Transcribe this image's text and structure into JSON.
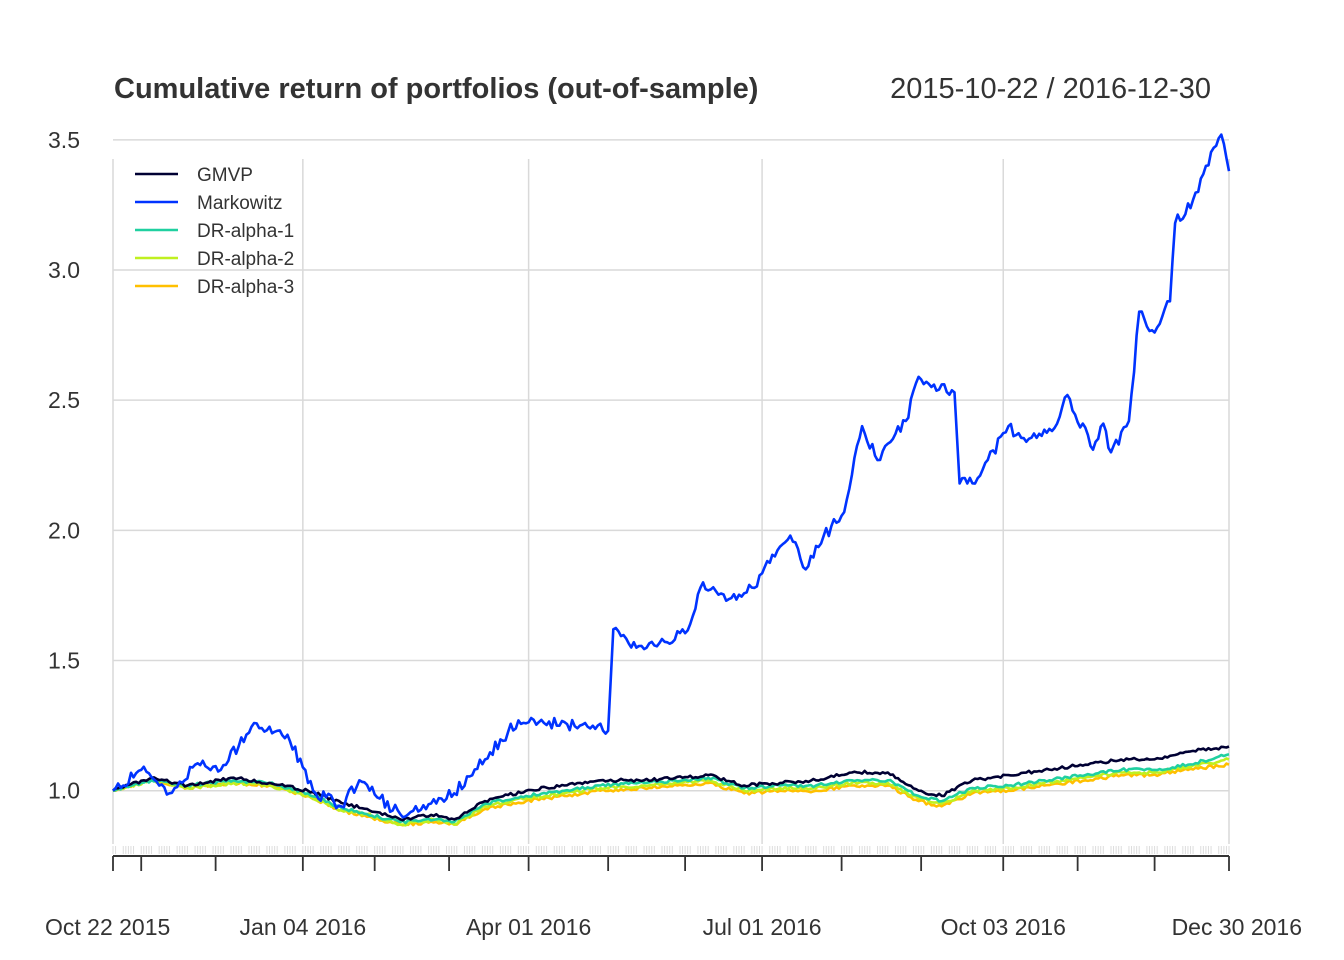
{
  "chart_data": {
    "type": "line",
    "title": "Cumulative return of portfolios (out-of-sample)",
    "date_range": "2015-10-22 / 2016-12-30",
    "xlabel": "",
    "ylabel": "",
    "ylim": [
      0.78,
      3.58
    ],
    "xlim": [
      "2015-10-22",
      "2016-12-30"
    ],
    "grid": true,
    "legend_position": "top-left",
    "y_ticks": [
      {
        "value": 1.0,
        "label": "1.0"
      },
      {
        "value": 1.5,
        "label": "1.5"
      },
      {
        "value": 2.0,
        "label": "2.0"
      },
      {
        "value": 2.5,
        "label": "2.5"
      },
      {
        "value": 3.0,
        "label": "3.0"
      },
      {
        "value": 3.5,
        "label": "3.5"
      }
    ],
    "x_ticks": [
      {
        "date": "2015-10-22",
        "label": "Oct 22 2015"
      },
      {
        "date": "2016-01-04",
        "label": "Jan 04 2016"
      },
      {
        "date": "2016-04-01",
        "label": "Apr 01 2016"
      },
      {
        "date": "2016-07-01",
        "label": "Jul 01 2016"
      },
      {
        "date": "2016-10-03",
        "label": "Oct 03 2016"
      },
      {
        "date": "2016-12-30",
        "label": "Dec 30 2016"
      }
    ],
    "x_minor_ticks": [
      "2015-11-02",
      "2015-12-01",
      "2016-02-01",
      "2016-03-01",
      "2016-05-02",
      "2016-06-01",
      "2016-08-01",
      "2016-09-01",
      "2016-11-01",
      "2016-12-01"
    ],
    "series": [
      {
        "name": "DR-alpha-3",
        "color": "#FFC000",
        "width": 2.6,
        "points": [
          [
            "2015-10-22",
            1.0
          ],
          [
            "2015-11-06",
            1.04
          ],
          [
            "2015-11-20",
            1.01
          ],
          [
            "2015-12-08",
            1.03
          ],
          [
            "2015-12-22",
            1.02
          ],
          [
            "2016-01-06",
            0.98
          ],
          [
            "2016-01-20",
            0.92
          ],
          [
            "2016-01-29",
            0.9
          ],
          [
            "2016-02-11",
            0.87
          ],
          [
            "2016-02-25",
            0.88
          ],
          [
            "2016-03-03",
            0.87
          ],
          [
            "2016-03-15",
            0.93
          ],
          [
            "2016-03-31",
            0.96
          ],
          [
            "2016-04-15",
            0.98
          ],
          [
            "2016-04-29",
            1.0
          ],
          [
            "2016-05-16",
            1.01
          ],
          [
            "2016-05-31",
            1.02
          ],
          [
            "2016-06-10",
            1.03
          ],
          [
            "2016-06-24",
            0.99
          ],
          [
            "2016-07-08",
            1.0
          ],
          [
            "2016-07-22",
            1.0
          ],
          [
            "2016-08-05",
            1.02
          ],
          [
            "2016-08-19",
            1.02
          ],
          [
            "2016-08-31",
            0.96
          ],
          [
            "2016-09-09",
            0.94
          ],
          [
            "2016-09-21",
            0.99
          ],
          [
            "2016-10-05",
            1.0
          ],
          [
            "2016-10-19",
            1.02
          ],
          [
            "2016-11-04",
            1.04
          ],
          [
            "2016-11-18",
            1.06
          ],
          [
            "2016-11-30",
            1.06
          ],
          [
            "2016-12-14",
            1.08
          ],
          [
            "2016-12-30",
            1.1
          ]
        ]
      },
      {
        "name": "DR-alpha-2",
        "color": "#C0F020",
        "width": 2.6,
        "points": [
          [
            "2015-10-22",
            1.0
          ],
          [
            "2015-11-06",
            1.04
          ],
          [
            "2015-11-20",
            1.01
          ],
          [
            "2015-12-08",
            1.03
          ],
          [
            "2015-12-22",
            1.02
          ],
          [
            "2016-01-06",
            0.98
          ],
          [
            "2016-01-20",
            0.92
          ],
          [
            "2016-01-29",
            0.91
          ],
          [
            "2016-02-11",
            0.87
          ],
          [
            "2016-02-25",
            0.89
          ],
          [
            "2016-03-03",
            0.87
          ],
          [
            "2016-03-15",
            0.94
          ],
          [
            "2016-03-31",
            0.97
          ],
          [
            "2016-04-15",
            0.99
          ],
          [
            "2016-04-29",
            1.01
          ],
          [
            "2016-05-16",
            1.02
          ],
          [
            "2016-05-31",
            1.03
          ],
          [
            "2016-06-10",
            1.04
          ],
          [
            "2016-06-24",
            1.0
          ],
          [
            "2016-07-08",
            1.01
          ],
          [
            "2016-07-22",
            1.01
          ],
          [
            "2016-08-05",
            1.03
          ],
          [
            "2016-08-19",
            1.03
          ],
          [
            "2016-08-31",
            0.97
          ],
          [
            "2016-09-09",
            0.95
          ],
          [
            "2016-09-21",
            1.0
          ],
          [
            "2016-10-05",
            1.01
          ],
          [
            "2016-10-19",
            1.03
          ],
          [
            "2016-11-04",
            1.05
          ],
          [
            "2016-11-18",
            1.07
          ],
          [
            "2016-11-30",
            1.07
          ],
          [
            "2016-12-14",
            1.09
          ],
          [
            "2016-12-30",
            1.12
          ]
        ]
      },
      {
        "name": "DR-alpha-1",
        "color": "#20D0A0",
        "width": 2.6,
        "points": [
          [
            "2015-10-22",
            1.0
          ],
          [
            "2015-11-06",
            1.04
          ],
          [
            "2015-11-20",
            1.02
          ],
          [
            "2015-12-08",
            1.04
          ],
          [
            "2015-12-22",
            1.03
          ],
          [
            "2016-01-06",
            0.99
          ],
          [
            "2016-01-20",
            0.93
          ],
          [
            "2016-01-29",
            0.91
          ],
          [
            "2016-02-11",
            0.88
          ],
          [
            "2016-02-25",
            0.89
          ],
          [
            "2016-03-03",
            0.88
          ],
          [
            "2016-03-15",
            0.95
          ],
          [
            "2016-03-31",
            0.98
          ],
          [
            "2016-04-15",
            1.0
          ],
          [
            "2016-04-29",
            1.02
          ],
          [
            "2016-05-16",
            1.03
          ],
          [
            "2016-05-31",
            1.04
          ],
          [
            "2016-06-10",
            1.05
          ],
          [
            "2016-06-24",
            1.01
          ],
          [
            "2016-07-08",
            1.02
          ],
          [
            "2016-07-22",
            1.02
          ],
          [
            "2016-08-05",
            1.04
          ],
          [
            "2016-08-19",
            1.04
          ],
          [
            "2016-08-31",
            0.98
          ],
          [
            "2016-09-09",
            0.96
          ],
          [
            "2016-09-21",
            1.01
          ],
          [
            "2016-10-05",
            1.02
          ],
          [
            "2016-10-19",
            1.04
          ],
          [
            "2016-11-04",
            1.06
          ],
          [
            "2016-11-18",
            1.08
          ],
          [
            "2016-11-30",
            1.08
          ],
          [
            "2016-12-14",
            1.1
          ],
          [
            "2016-12-30",
            1.14
          ]
        ]
      },
      {
        "name": "GMVP",
        "color": "#000033",
        "width": 2.6,
        "points": [
          [
            "2015-10-22",
            1.0
          ],
          [
            "2015-11-06",
            1.05
          ],
          [
            "2015-11-20",
            1.02
          ],
          [
            "2015-12-08",
            1.05
          ],
          [
            "2015-12-22",
            1.03
          ],
          [
            "2016-01-06",
            1.0
          ],
          [
            "2016-01-20",
            0.95
          ],
          [
            "2016-01-29",
            0.93
          ],
          [
            "2016-02-11",
            0.89
          ],
          [
            "2016-02-25",
            0.91
          ],
          [
            "2016-03-03",
            0.89
          ],
          [
            "2016-03-15",
            0.96
          ],
          [
            "2016-03-31",
            1.0
          ],
          [
            "2016-04-15",
            1.02
          ],
          [
            "2016-04-29",
            1.04
          ],
          [
            "2016-05-16",
            1.04
          ],
          [
            "2016-05-31",
            1.05
          ],
          [
            "2016-06-10",
            1.06
          ],
          [
            "2016-06-24",
            1.02
          ],
          [
            "2016-07-08",
            1.03
          ],
          [
            "2016-07-22",
            1.04
          ],
          [
            "2016-08-05",
            1.07
          ],
          [
            "2016-08-19",
            1.07
          ],
          [
            "2016-08-31",
            1.0
          ],
          [
            "2016-09-09",
            0.98
          ],
          [
            "2016-09-21",
            1.04
          ],
          [
            "2016-10-05",
            1.06
          ],
          [
            "2016-10-19",
            1.08
          ],
          [
            "2016-11-04",
            1.1
          ],
          [
            "2016-11-18",
            1.12
          ],
          [
            "2016-11-30",
            1.12
          ],
          [
            "2016-12-14",
            1.15
          ],
          [
            "2016-12-30",
            1.17
          ]
        ]
      },
      {
        "name": "Markowitz",
        "color": "#0033FF",
        "width": 2.6,
        "points": [
          [
            "2015-10-22",
            1.0
          ],
          [
            "2015-11-02",
            1.08
          ],
          [
            "2015-11-13",
            0.99
          ],
          [
            "2015-11-23",
            1.1
          ],
          [
            "2015-12-03",
            1.08
          ],
          [
            "2015-12-16",
            1.26
          ],
          [
            "2015-12-30",
            1.19
          ],
          [
            "2016-01-08",
            1.0
          ],
          [
            "2016-01-19",
            0.94
          ],
          [
            "2016-01-26",
            1.04
          ],
          [
            "2016-02-03",
            0.97
          ],
          [
            "2016-02-11",
            0.91
          ],
          [
            "2016-02-18",
            0.92
          ],
          [
            "2016-03-03",
            0.99
          ],
          [
            "2016-03-15",
            1.12
          ],
          [
            "2016-03-28",
            1.27
          ],
          [
            "2016-04-07",
            1.26
          ],
          [
            "2016-04-21",
            1.25
          ],
          [
            "2016-05-02",
            1.23
          ],
          [
            "2016-05-04",
            1.62
          ],
          [
            "2016-05-11",
            1.55
          ],
          [
            "2016-05-25",
            1.57
          ],
          [
            "2016-06-03",
            1.64
          ],
          [
            "2016-06-08",
            1.8
          ],
          [
            "2016-06-17",
            1.73
          ],
          [
            "2016-06-27",
            1.78
          ],
          [
            "2016-07-06",
            1.9
          ],
          [
            "2016-07-12",
            1.98
          ],
          [
            "2016-07-18",
            1.85
          ],
          [
            "2016-07-22",
            1.94
          ],
          [
            "2016-08-02",
            2.07
          ],
          [
            "2016-08-09",
            2.4
          ],
          [
            "2016-08-15",
            2.27
          ],
          [
            "2016-08-26",
            2.42
          ],
          [
            "2016-08-31",
            2.59
          ],
          [
            "2016-09-06",
            2.56
          ],
          [
            "2016-09-14",
            2.53
          ],
          [
            "2016-09-16",
            2.18
          ],
          [
            "2016-09-23",
            2.2
          ],
          [
            "2016-10-05",
            2.4
          ],
          [
            "2016-10-12",
            2.34
          ],
          [
            "2016-10-24",
            2.41
          ],
          [
            "2016-10-28",
            2.52
          ],
          [
            "2016-11-07",
            2.31
          ],
          [
            "2016-11-11",
            2.41
          ],
          [
            "2016-11-14",
            2.3
          ],
          [
            "2016-11-21",
            2.42
          ],
          [
            "2016-11-25",
            2.84
          ],
          [
            "2016-12-01",
            2.76
          ],
          [
            "2016-12-07",
            2.88
          ],
          [
            "2016-12-09",
            3.18
          ],
          [
            "2016-12-16",
            3.27
          ],
          [
            "2016-12-21",
            3.4
          ],
          [
            "2016-12-27",
            3.52
          ],
          [
            "2016-12-30",
            3.38
          ]
        ]
      }
    ]
  },
  "legend": [
    {
      "name": "GMVP",
      "color": "#000033"
    },
    {
      "name": "Markowitz",
      "color": "#0033FF"
    },
    {
      "name": "DR-alpha-1",
      "color": "#20D0A0"
    },
    {
      "name": "DR-alpha-2",
      "color": "#C0F020"
    },
    {
      "name": "DR-alpha-3",
      "color": "#FFC000"
    }
  ]
}
